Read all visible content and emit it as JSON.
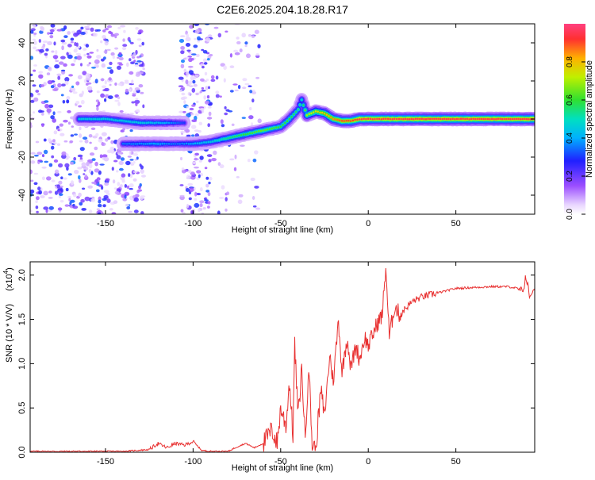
{
  "title": "C2E6.2025.204.18.28.R17",
  "chart_data": [
    {
      "type": "heatmap",
      "xlabel": "Height of straight line (km)",
      "ylabel": "Frequency (Hz)",
      "xlim": [
        -193,
        95
      ],
      "ylim": [
        -50,
        50
      ],
      "xticks": [
        -150,
        -100,
        -50,
        0,
        50
      ],
      "yticks": [
        -40,
        -20,
        0,
        20,
        40
      ],
      "colorbar": {
        "label": "Normalized spectral amplitude",
        "range": [
          0,
          1
        ],
        "ticks": [
          "0.0",
          "0.2",
          "0.4",
          "0.6",
          "0.8"
        ],
        "colormap": "rainbow-white"
      },
      "ridges": [
        {
          "name": "upper",
          "x": [
            -165,
            -150,
            -130,
            -115,
            -105
          ],
          "y": [
            0,
            0,
            -2,
            -2,
            -2
          ],
          "amplitude": [
            0.45,
            0.45,
            0.45,
            0.4,
            0.3
          ]
        },
        {
          "name": "main",
          "x": [
            -140,
            -120,
            -110,
            -100,
            -90,
            -80,
            -70,
            -60,
            -50,
            -45,
            -40,
            -38,
            -35,
            -30,
            -25,
            -20,
            -15,
            -10,
            -5,
            0,
            10,
            20,
            40,
            60,
            80,
            95
          ],
          "y": [
            -13,
            -13,
            -13,
            -13,
            -12,
            -10,
            -8,
            -6,
            -4,
            0,
            5,
            10,
            2,
            4,
            3,
            0,
            -1,
            -1,
            0,
            0,
            0,
            0,
            0,
            0,
            0,
            0
          ],
          "amplitude": [
            0.35,
            0.4,
            0.35,
            0.4,
            0.45,
            0.55,
            0.6,
            0.65,
            0.6,
            0.6,
            0.55,
            0.5,
            0.7,
            0.75,
            0.8,
            0.85,
            0.9,
            0.9,
            0.95,
            0.95,
            0.95,
            0.95,
            0.95,
            0.95,
            0.95,
            0.95
          ]
        }
      ]
    },
    {
      "type": "line",
      "xlabel": "Height of straight line (km)",
      "ylabel": "SNR (10 * V/V)",
      "scale_label": "(x10",
      "scale_exponent": "4",
      "xlim": [
        -193,
        95
      ],
      "ylim": [
        0,
        2.15
      ],
      "xticks": [
        -150,
        -100,
        -50,
        0,
        50
      ],
      "yticks": [
        0.0,
        0.5,
        1.0,
        1.5,
        2.0
      ],
      "line_color": "#e83030",
      "series": [
        {
          "x": [
            -193,
            -170,
            -140,
            -125,
            -120,
            -115,
            -110,
            -105,
            -100,
            -95,
            -90,
            -80,
            -75,
            -70,
            -65,
            -60,
            -55,
            -52,
            -50,
            -47,
            -45,
            -43,
            -42,
            -40,
            -38,
            -36,
            -34,
            -32,
            -30,
            -27,
            -25,
            -22,
            -20,
            -17,
            -15,
            -12,
            -10,
            -7,
            -5,
            -2,
            0,
            3,
            5,
            8,
            10,
            12,
            15,
            18,
            20,
            25,
            30,
            40,
            50,
            60,
            70,
            80,
            85,
            88,
            90,
            92,
            95
          ],
          "y": [
            0.01,
            0.01,
            0.01,
            0.03,
            0.1,
            0.05,
            0.1,
            0.08,
            0.12,
            0.02,
            0.01,
            0.01,
            0.06,
            0.1,
            0.05,
            0.1,
            0.25,
            0.1,
            0.5,
            0.3,
            0.8,
            0.2,
            1.2,
            0.4,
            0.95,
            0.15,
            1.0,
            0.08,
            0.05,
            0.7,
            0.4,
            1.1,
            0.8,
            1.5,
            0.9,
            1.3,
            0.95,
            1.2,
            1.05,
            1.3,
            1.2,
            1.35,
            1.45,
            1.55,
            2.1,
            1.3,
            1.65,
            1.55,
            1.6,
            1.7,
            1.75,
            1.8,
            1.85,
            1.86,
            1.87,
            1.87,
            1.85,
            1.8,
            2.0,
            1.75,
            1.85
          ]
        }
      ]
    }
  ]
}
